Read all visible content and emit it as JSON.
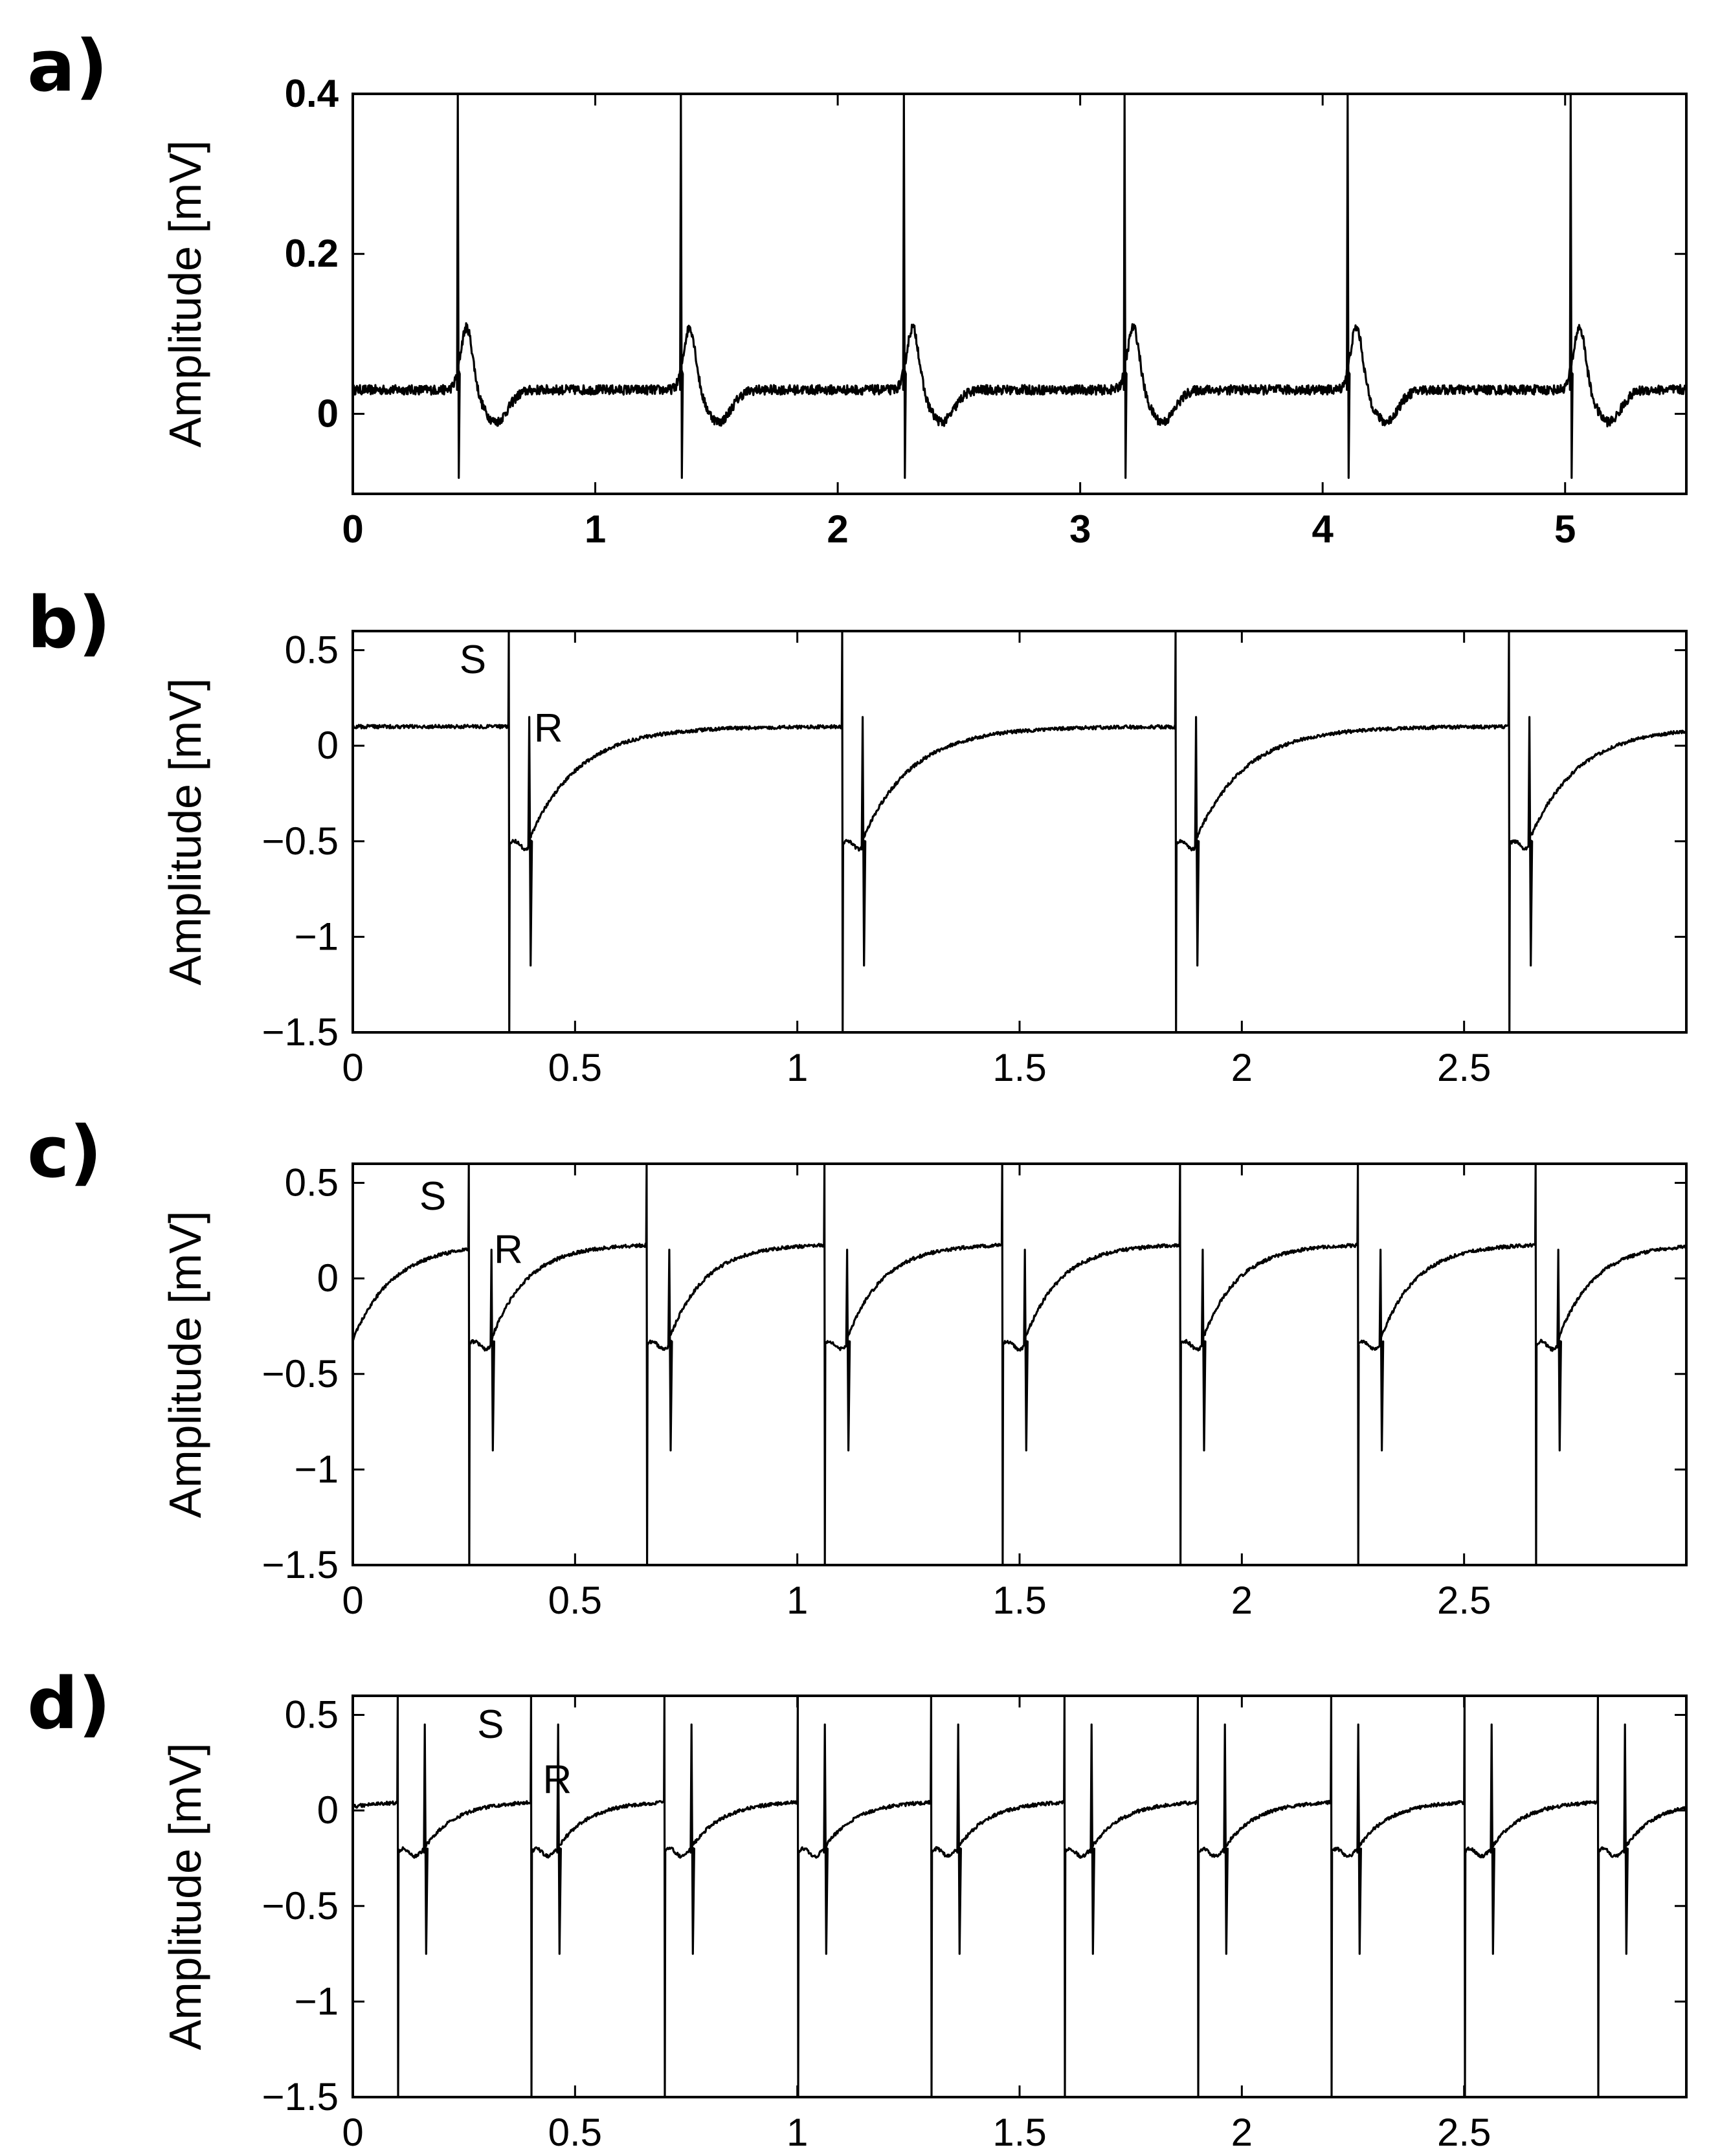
{
  "chart_data": [
    {
      "panel": "a)",
      "type": "line",
      "ylabel": "Amplitude [mV]",
      "xlim": [
        0,
        5.5
      ],
      "ylim": [
        -0.1,
        0.4
      ],
      "xticks": [
        0,
        1,
        2,
        3,
        4,
        5
      ],
      "xtick_labels": [
        "0",
        "1",
        "2",
        "3",
        "4",
        "5"
      ],
      "yticks": [
        0,
        0.2,
        0.4
      ],
      "ytick_labels": [
        "0",
        "0.2",
        "0.4"
      ],
      "baseline": 0.03,
      "beats": [
        0.43,
        1.35,
        2.27,
        3.18,
        4.1,
        5.02
      ],
      "spike_max": 0.4,
      "spike_min": -0.08,
      "wave_peak": 0.11,
      "wave_trough": -0.01,
      "annotations": []
    },
    {
      "panel": "b)",
      "type": "line",
      "ylabel": "Amplitude [mV]",
      "xlim": [
        0,
        3
      ],
      "ylim": [
        -1.5,
        0.6
      ],
      "xticks": [
        0,
        0.5,
        1,
        1.5,
        2,
        2.5
      ],
      "xtick_labels": [
        "0",
        "0.5",
        "1",
        "1.5",
        "2",
        "2.5"
      ],
      "yticks": [
        -1.5,
        -1,
        -0.5,
        0,
        0.5
      ],
      "ytick_labels": [
        "−1.5",
        "−1",
        "−0.5",
        "0",
        "0.5"
      ],
      "stim_times": [
        0.35,
        1.1,
        1.85,
        2.6
      ],
      "r_offset": 0.045,
      "plateau": 0.1,
      "post_level": -0.52,
      "r_peak": 0.15,
      "r_min": -1.15,
      "recovery_tau": 0.11,
      "annotations": [
        {
          "text": "S",
          "x": 0.27,
          "y": 0.38
        },
        {
          "text": "R",
          "x": 0.44,
          "y": 0.02
        }
      ]
    },
    {
      "panel": "c)",
      "type": "line",
      "ylabel": "Amplitude [mV]",
      "xlim": [
        0,
        3
      ],
      "ylim": [
        -1.5,
        0.6
      ],
      "xticks": [
        0,
        0.5,
        1,
        1.5,
        2,
        2.5
      ],
      "xtick_labels": [
        "0",
        "0.5",
        "1",
        "1.5",
        "2",
        "2.5"
      ],
      "yticks": [
        -1.5,
        -1,
        -0.5,
        0,
        0.5
      ],
      "ytick_labels": [
        "−1.5",
        "−1",
        "−0.5",
        "0",
        "0.5"
      ],
      "start_level": -0.32,
      "stim_times": [
        0.26,
        0.66,
        1.06,
        1.46,
        1.86,
        2.26,
        2.66
      ],
      "r_offset": 0.05,
      "plateau": 0.18,
      "post_level": -0.35,
      "r_peak": 0.15,
      "r_min": -0.9,
      "recovery_tau": 0.08,
      "annotations": [
        {
          "text": "S",
          "x": 0.18,
          "y": 0.36
        },
        {
          "text": "R",
          "x": 0.35,
          "y": 0.08
        }
      ]
    },
    {
      "panel": "d)",
      "type": "line",
      "ylabel": "Amplitude [mV]",
      "xlim": [
        0,
        3
      ],
      "ylim": [
        -1.5,
        0.6
      ],
      "xticks": [
        0,
        0.5,
        1,
        1.5,
        2,
        2.5
      ],
      "xtick_labels": [
        "0",
        "0.5",
        "1",
        "1.5",
        "2",
        "2.5"
      ],
      "yticks": [
        -1.5,
        -1,
        -0.5,
        0,
        0.5
      ],
      "ytick_labels": [
        "−1.5",
        "−1",
        "−0.5",
        "0",
        "0.5"
      ],
      "start_level": 0.02,
      "stim_times": [
        0.1,
        0.4,
        0.7,
        1.0,
        1.3,
        1.6,
        1.9,
        2.2,
        2.5,
        2.8
      ],
      "r_offset": 0.06,
      "plateau": 0.05,
      "post_level": -0.22,
      "r_peak": 0.45,
      "r_min": -0.75,
      "recovery_tau": 0.07,
      "annotations": [
        {
          "text": "S",
          "x": 0.31,
          "y": 0.38
        },
        {
          "text": "R",
          "x": 0.46,
          "y": 0.09
        }
      ]
    }
  ]
}
